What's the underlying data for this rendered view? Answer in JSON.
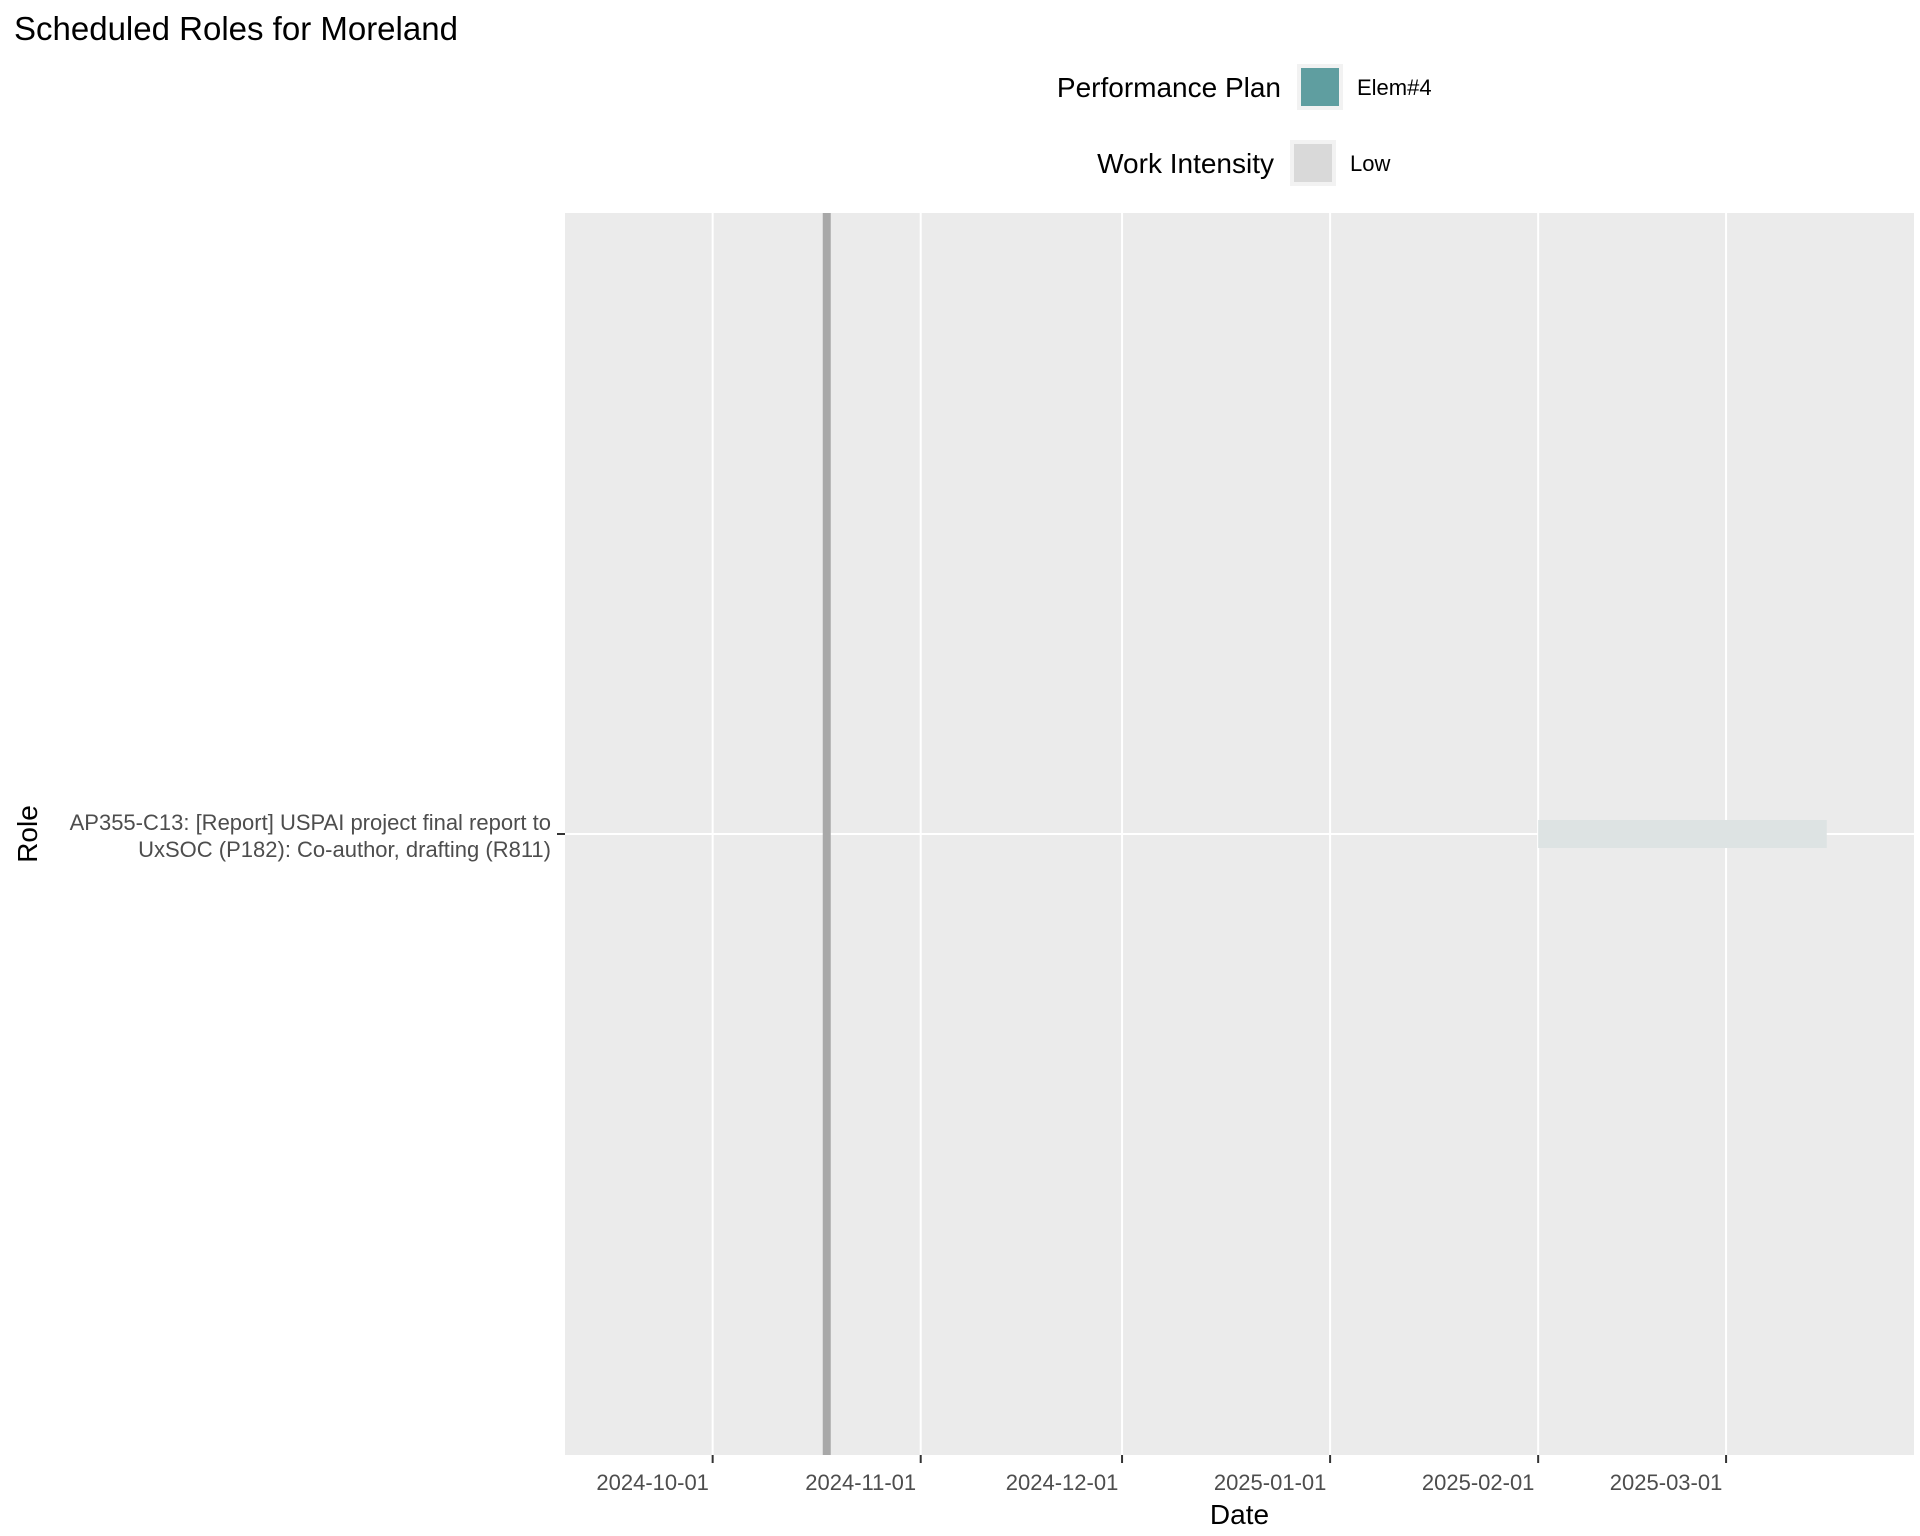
{
  "chart_data": {
    "type": "gantt",
    "title": "Scheduled Roles for Moreland",
    "xlabel": "Date",
    "ylabel": "Role",
    "xlim": [
      "2024-09-09",
      "2025-03-29"
    ],
    "x_ticks": [
      "2024-10-01",
      "2024-11-01",
      "2024-12-01",
      "2025-01-01",
      "2025-02-01",
      "2025-03-01"
    ],
    "categories": [
      [
        "AP355-C13: [Report] USPAI project final report to",
        "UxSOC (P182): Co-author, drafting (R811)"
      ]
    ],
    "bars": [
      {
        "category_index": 0,
        "start": "2025-02-01",
        "end": "2025-03-16",
        "intensity": "Low",
        "plan": "Elem#4"
      }
    ],
    "today_marker": "2024-10-18",
    "grid": true,
    "legend_position": "top",
    "legends": [
      {
        "title": "Performance Plan",
        "items": [
          {
            "label": "Elem#4",
            "color": "#5f9ea0"
          }
        ]
      },
      {
        "title": "Work Intensity",
        "items": [
          {
            "label": "Low",
            "color": "#d9d9d9"
          }
        ]
      }
    ],
    "colors": {
      "panel": "#ebebeb",
      "grid": "#ffffff",
      "today_line": "#a8a8a8",
      "bar": "#dde3e3",
      "legend_key_bg": "#f2f2f2"
    }
  }
}
